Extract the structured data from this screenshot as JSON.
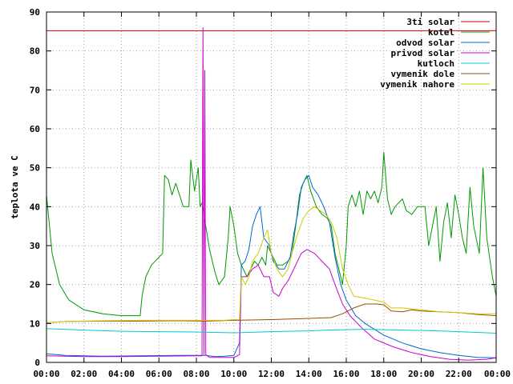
{
  "chart_data": {
    "type": "line",
    "ylabel": "teplota ve C",
    "xlabel": "",
    "ylim": [
      0,
      90
    ],
    "xlim": [
      0,
      24
    ],
    "yticks": [
      0,
      10,
      20,
      30,
      40,
      50,
      60,
      70,
      80,
      90
    ],
    "xticks": [
      0,
      2,
      4,
      6,
      8,
      10,
      12,
      14,
      16,
      18,
      20,
      22,
      24
    ],
    "xtick_labels": [
      "00:00",
      "02:00",
      "04:00",
      "06:00",
      "08:00",
      "10:00",
      "12:00",
      "14:00",
      "16:00",
      "18:00",
      "20:00",
      "22:00",
      "00:00"
    ],
    "legend_position": "top-right",
    "series": [
      {
        "name": "3ti solar",
        "color": "#cc0000",
        "points": [
          [
            0,
            85.2
          ],
          [
            24,
            85.2
          ]
        ]
      },
      {
        "name": "kotel",
        "color": "#009900",
        "points": [
          [
            0,
            43
          ],
          [
            0.3,
            28
          ],
          [
            0.7,
            20
          ],
          [
            1.2,
            16
          ],
          [
            2,
            13.5
          ],
          [
            3,
            12.5
          ],
          [
            4,
            12
          ],
          [
            5,
            12
          ],
          [
            5.1,
            17
          ],
          [
            5.3,
            22
          ],
          [
            5.6,
            25
          ],
          [
            6,
            27
          ],
          [
            6.2,
            28
          ],
          [
            6.3,
            48
          ],
          [
            6.5,
            47
          ],
          [
            6.7,
            43
          ],
          [
            6.9,
            46
          ],
          [
            7.1,
            43
          ],
          [
            7.3,
            40
          ],
          [
            7.6,
            40
          ],
          [
            7.7,
            52
          ],
          [
            7.9,
            44
          ],
          [
            8.1,
            50
          ],
          [
            8.2,
            40
          ],
          [
            8.3,
            41
          ],
          [
            8.5,
            35
          ],
          [
            8.7,
            29
          ],
          [
            9,
            23
          ],
          [
            9.2,
            20
          ],
          [
            9.5,
            22
          ],
          [
            9.7,
            32
          ],
          [
            9.8,
            40
          ],
          [
            10,
            35
          ],
          [
            10.2,
            28
          ],
          [
            10.4,
            25
          ],
          [
            10.7,
            22
          ],
          [
            10.9,
            24
          ],
          [
            11.1,
            26
          ],
          [
            11.3,
            25
          ],
          [
            11.5,
            27
          ],
          [
            11.7,
            25
          ],
          [
            11.8,
            30
          ],
          [
            12,
            28
          ],
          [
            12.3,
            25
          ],
          [
            12.6,
            25
          ],
          [
            12.9,
            26
          ],
          [
            13.1,
            28
          ],
          [
            13.3,
            35
          ],
          [
            13.5,
            43
          ],
          [
            13.7,
            46
          ],
          [
            13.9,
            48
          ],
          [
            14.1,
            44
          ],
          [
            14.4,
            40
          ],
          [
            14.7,
            38
          ],
          [
            15,
            37
          ],
          [
            15.2,
            35
          ],
          [
            15.4,
            28
          ],
          [
            15.6,
            24
          ],
          [
            15.8,
            20
          ],
          [
            16,
            30
          ],
          [
            16.1,
            40
          ],
          [
            16.3,
            43
          ],
          [
            16.5,
            40
          ],
          [
            16.7,
            44
          ],
          [
            16.9,
            38
          ],
          [
            17.1,
            44
          ],
          [
            17.3,
            42
          ],
          [
            17.5,
            44
          ],
          [
            17.7,
            41
          ],
          [
            17.9,
            45
          ],
          [
            18,
            54
          ],
          [
            18.2,
            42
          ],
          [
            18.4,
            38
          ],
          [
            18.6,
            40
          ],
          [
            18.8,
            41
          ],
          [
            19,
            42
          ],
          [
            19.2,
            39
          ],
          [
            19.5,
            38
          ],
          [
            19.8,
            40
          ],
          [
            20.2,
            40
          ],
          [
            20.4,
            30
          ],
          [
            20.6,
            35
          ],
          [
            20.8,
            40
          ],
          [
            21,
            26
          ],
          [
            21.2,
            36
          ],
          [
            21.4,
            41
          ],
          [
            21.6,
            32
          ],
          [
            21.8,
            43
          ],
          [
            22,
            38
          ],
          [
            22.2,
            32
          ],
          [
            22.4,
            28
          ],
          [
            22.6,
            45
          ],
          [
            22.8,
            35
          ],
          [
            23.1,
            28
          ],
          [
            23.3,
            50
          ],
          [
            23.5,
            32
          ],
          [
            23.8,
            22
          ],
          [
            24,
            17
          ]
        ]
      },
      {
        "name": "odvod solar",
        "color": "#0066cc",
        "points": [
          [
            0,
            2.2
          ],
          [
            1,
            1.8
          ],
          [
            3,
            1.6
          ],
          [
            5,
            1.7
          ],
          [
            7,
            1.8
          ],
          [
            8.5,
            1.8
          ],
          [
            9,
            1.5
          ],
          [
            9.5,
            1.6
          ],
          [
            10,
            1.8
          ],
          [
            10.3,
            5
          ],
          [
            10.4,
            25
          ],
          [
            10.6,
            26
          ],
          [
            10.8,
            29
          ],
          [
            11,
            35
          ],
          [
            11.2,
            38
          ],
          [
            11.4,
            40
          ],
          [
            11.6,
            32
          ],
          [
            11.9,
            30
          ],
          [
            12.1,
            26
          ],
          [
            12.4,
            24
          ],
          [
            12.7,
            24
          ],
          [
            13,
            27
          ],
          [
            13.2,
            33
          ],
          [
            13.4,
            38
          ],
          [
            13.6,
            45
          ],
          [
            13.8,
            47
          ],
          [
            14,
            48
          ],
          [
            14.2,
            45
          ],
          [
            14.5,
            43
          ],
          [
            14.8,
            40
          ],
          [
            15.1,
            36
          ],
          [
            15.4,
            27
          ],
          [
            15.7,
            20
          ],
          [
            16,
            16
          ],
          [
            16.5,
            12
          ],
          [
            17,
            10
          ],
          [
            18,
            7
          ],
          [
            19,
            5
          ],
          [
            20,
            3.5
          ],
          [
            21,
            2.5
          ],
          [
            22,
            1.8
          ],
          [
            23,
            1.3
          ],
          [
            24,
            1.2
          ]
        ]
      },
      {
        "name": "privod solar",
        "color": "#cc00cc",
        "points": [
          [
            0,
            1.7
          ],
          [
            2,
            1.5
          ],
          [
            4,
            1.5
          ],
          [
            6,
            1.6
          ],
          [
            8,
            1.7
          ],
          [
            8.3,
            1.7
          ],
          [
            8.35,
            86
          ],
          [
            8.4,
            2
          ],
          [
            8.45,
            75
          ],
          [
            8.5,
            2
          ],
          [
            8.7,
            1.3
          ],
          [
            9.5,
            1.3
          ],
          [
            10,
            1.3
          ],
          [
            10.3,
            2
          ],
          [
            10.4,
            22
          ],
          [
            10.7,
            22
          ],
          [
            11,
            24
          ],
          [
            11.3,
            25
          ],
          [
            11.6,
            22
          ],
          [
            11.9,
            22
          ],
          [
            12.1,
            18
          ],
          [
            12.4,
            17
          ],
          [
            12.6,
            19
          ],
          [
            12.9,
            21
          ],
          [
            13.1,
            23
          ],
          [
            13.3,
            25
          ],
          [
            13.6,
            28
          ],
          [
            13.9,
            29
          ],
          [
            14.3,
            28
          ],
          [
            14.7,
            26
          ],
          [
            15.1,
            24
          ],
          [
            15.4,
            20
          ],
          [
            15.8,
            15
          ],
          [
            16.2,
            12
          ],
          [
            16.8,
            9
          ],
          [
            17.5,
            6
          ],
          [
            18.5,
            4
          ],
          [
            19.5,
            2.5
          ],
          [
            20.5,
            1.5
          ],
          [
            21.5,
            0.8
          ],
          [
            22.5,
            0.6
          ],
          [
            23.5,
            0.8
          ],
          [
            24,
            1.2
          ]
        ]
      },
      {
        "name": "kutloch",
        "color": "#00cccc",
        "points": [
          [
            0,
            8.7
          ],
          [
            2,
            8.3
          ],
          [
            4,
            8
          ],
          [
            6,
            7.9
          ],
          [
            8,
            7.8
          ],
          [
            10,
            7.6
          ],
          [
            12,
            7.9
          ],
          [
            14,
            8.1
          ],
          [
            15,
            8.3
          ],
          [
            17,
            8.5
          ],
          [
            19,
            8.3
          ],
          [
            21,
            8.1
          ],
          [
            22,
            7.9
          ],
          [
            23,
            7.7
          ],
          [
            24,
            7.5
          ]
        ]
      },
      {
        "name": "vymenik dole",
        "color": "#994c00",
        "points": [
          [
            0,
            10.2
          ],
          [
            1,
            10.5
          ],
          [
            3,
            10.6
          ],
          [
            5,
            10.6
          ],
          [
            7,
            10.7
          ],
          [
            8.5,
            10.6
          ],
          [
            10,
            10.8
          ],
          [
            12,
            11
          ],
          [
            14,
            11.3
          ],
          [
            15.2,
            11.5
          ],
          [
            15.8,
            12.5
          ],
          [
            16.4,
            14
          ],
          [
            17,
            15
          ],
          [
            17.6,
            15
          ],
          [
            18,
            14.8
          ],
          [
            18.4,
            13.2
          ],
          [
            19,
            13
          ],
          [
            19.5,
            13.5
          ],
          [
            20,
            13.2
          ],
          [
            21,
            13
          ],
          [
            22,
            12.8
          ],
          [
            23,
            12.3
          ],
          [
            24,
            12
          ]
        ]
      },
      {
        "name": "vymenik nahore",
        "color": "#cccc00",
        "points": [
          [
            0,
            10.2
          ],
          [
            1,
            10.5
          ],
          [
            3,
            10.7
          ],
          [
            5,
            10.8
          ],
          [
            7,
            10.8
          ],
          [
            8.5,
            10.8
          ],
          [
            9.5,
            10.8
          ],
          [
            10,
            11
          ],
          [
            10.3,
            11
          ],
          [
            10.4,
            22
          ],
          [
            10.6,
            20
          ],
          [
            10.8,
            22
          ],
          [
            11,
            26
          ],
          [
            11.3,
            28
          ],
          [
            11.6,
            32
          ],
          [
            11.8,
            34
          ],
          [
            12,
            28
          ],
          [
            12.3,
            24
          ],
          [
            12.6,
            22
          ],
          [
            12.9,
            24
          ],
          [
            13.1,
            28
          ],
          [
            13.4,
            33
          ],
          [
            13.7,
            37
          ],
          [
            14,
            39
          ],
          [
            14.3,
            40
          ],
          [
            14.6,
            39
          ],
          [
            14.9,
            38
          ],
          [
            15.2,
            36
          ],
          [
            15.5,
            32
          ],
          [
            15.8,
            24
          ],
          [
            16.1,
            20
          ],
          [
            16.4,
            17
          ],
          [
            17,
            16.5
          ],
          [
            17.5,
            16
          ],
          [
            18,
            15.5
          ],
          [
            18.4,
            14
          ],
          [
            19,
            14
          ],
          [
            20,
            13.5
          ],
          [
            21,
            13
          ],
          [
            22,
            12.8
          ],
          [
            23,
            12.5
          ],
          [
            24,
            12.5
          ]
        ]
      }
    ]
  }
}
